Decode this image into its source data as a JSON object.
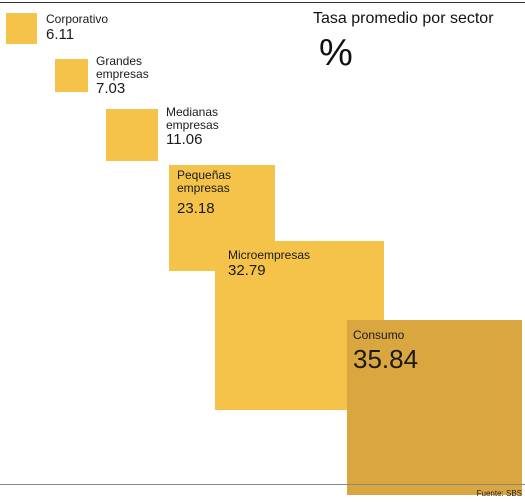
{
  "chart_data": {
    "type": "bar",
    "title": "Tasa promedio por sector",
    "unit": "%",
    "categories": [
      "Corporativo",
      "Grandes empresas",
      "Medianas empresas",
      "Pequeñas empresas",
      "Microempresas",
      "Consumo"
    ],
    "labels": [
      "Corporativo",
      "Grandes\nempresas",
      "Medianas\nempresas",
      "Pequeñas\nempresas",
      "Microempresas",
      "Consumo"
    ],
    "values": [
      6.11,
      7.03,
      11.06,
      23.18,
      32.79,
      35.84
    ],
    "value_labels": [
      "6.11",
      "7.03",
      "11.06",
      "23.18",
      "32.79",
      "35.84"
    ],
    "colors": [
      "#f5c34a",
      "#f5c34a",
      "#f5c34a",
      "#f5c34a",
      "#f5c34a",
      "#d9a640"
    ],
    "source": "Fuente: SBS"
  }
}
